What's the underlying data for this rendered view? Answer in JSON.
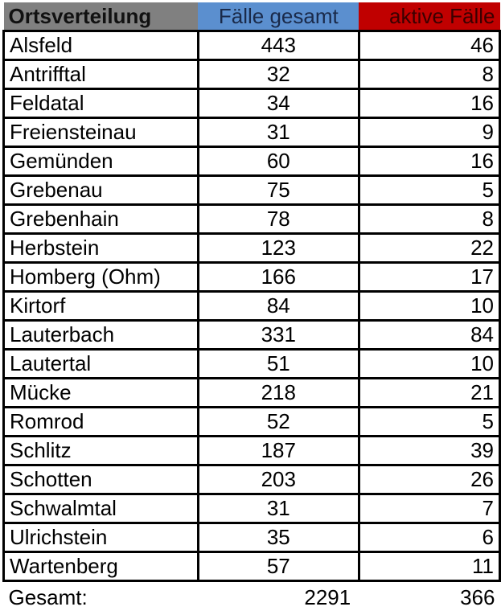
{
  "header": {
    "place": "Ortsverteilung",
    "total": "Fälle gesamt",
    "active": "aktive Fälle"
  },
  "colors": {
    "place_header": "#808080",
    "total_header": "#5b8fcf",
    "active_header": "#c00000"
  },
  "rows": [
    {
      "place": "Alsfeld",
      "total": "443",
      "active": "46"
    },
    {
      "place": "Antrifftal",
      "total": "32",
      "active": "8"
    },
    {
      "place": "Feldatal",
      "total": "34",
      "active": "16"
    },
    {
      "place": "Freiensteinau",
      "total": "31",
      "active": "9"
    },
    {
      "place": "Gemünden",
      "total": "60",
      "active": "16"
    },
    {
      "place": "Grebenau",
      "total": "75",
      "active": "5"
    },
    {
      "place": "Grebenhain",
      "total": "78",
      "active": "8"
    },
    {
      "place": "Herbstein",
      "total": "123",
      "active": "22"
    },
    {
      "place": "Homberg (Ohm)",
      "total": "166",
      "active": "17"
    },
    {
      "place": "Kirtorf",
      "total": "84",
      "active": "10"
    },
    {
      "place": "Lauterbach",
      "total": "331",
      "active": "84"
    },
    {
      "place": "Lautertal",
      "total": "51",
      "active": "10"
    },
    {
      "place": "Mücke",
      "total": "218",
      "active": "21"
    },
    {
      "place": "Romrod",
      "total": "52",
      "active": "5"
    },
    {
      "place": "Schlitz",
      "total": "187",
      "active": "39"
    },
    {
      "place": "Schotten",
      "total": "203",
      "active": "26"
    },
    {
      "place": "Schwalmtal",
      "total": "31",
      "active": "7"
    },
    {
      "place": "Ulrichstein",
      "total": "35",
      "active": "6"
    },
    {
      "place": "Wartenberg",
      "total": "57",
      "active": "11"
    }
  ],
  "footer": {
    "label": "Gesamt:",
    "total": "2291",
    "active": "366"
  }
}
